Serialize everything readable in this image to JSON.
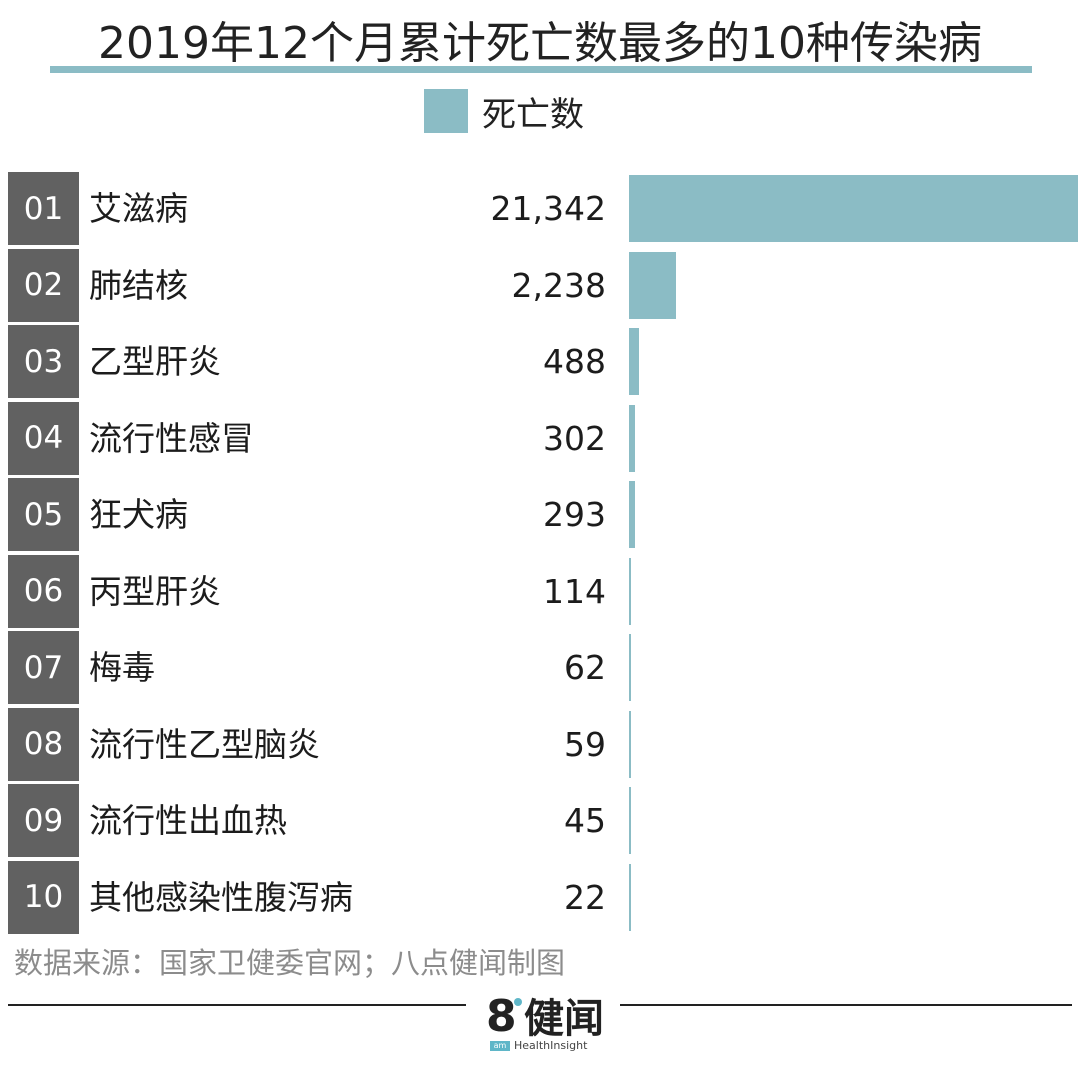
{
  "chart_data": {
    "type": "bar",
    "orientation": "horizontal",
    "title": "2019年12个月累计死亡数最多的10种传染病",
    "legend": [
      "死亡数"
    ],
    "legend_position": "top-center",
    "series": [
      {
        "name": "死亡数",
        "color": "#8bbcc5"
      }
    ],
    "ranks": [
      "01",
      "02",
      "03",
      "04",
      "05",
      "06",
      "07",
      "08",
      "09",
      "10"
    ],
    "categories": [
      "艾滋病",
      "肺结核",
      "乙型肝炎",
      "流行性感冒",
      "狂犬病",
      "丙型肝炎",
      "梅毒",
      "流行性乙型脑炎",
      "流行性出血热",
      "其他感染性腹泻病"
    ],
    "values": [
      21342,
      2238,
      488,
      302,
      293,
      114,
      62,
      59,
      45,
      22
    ],
    "value_labels": [
      "21,342",
      "2,238",
      "488",
      "302",
      "293",
      "114",
      "62",
      "59",
      "45",
      "22"
    ],
    "xlim": [
      0,
      21342
    ],
    "grid": false
  },
  "source_note": "数据来源：国家卫健委官网；八点健闻制图",
  "logo": {
    "number": "8",
    "name_cn": "健闻",
    "badge": "am",
    "name_en": "HealthInsight"
  },
  "colors": {
    "accent": "#8bbcc5",
    "rank_box": "#616161",
    "source_text": "#8c8c8c"
  }
}
